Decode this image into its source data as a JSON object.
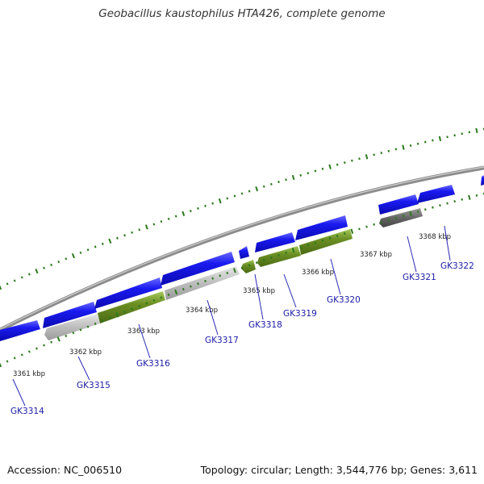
{
  "title": "Geobacillus kaustophilus HTA426, complete genome",
  "footer": {
    "accession": "Accession: NC_006510",
    "summary": "Topology: circular; Length: 3,544,776 bp; Genes: 3,611"
  },
  "colors": {
    "forward_gene": "#1414e6",
    "reverse_gene": "#6b8e23",
    "gray_gene": "#bdbdbd",
    "dark_gray_gene": "#666666",
    "tick": "#2a7a1a",
    "backbone": "#8c8c8c",
    "label": "#1a1aa6"
  },
  "scale_labels": [
    "3361 kbp",
    "3362 kbp",
    "3363 kbp",
    "3364 kbp",
    "3365 kbp",
    "3366 kbp",
    "3367 kbp",
    "3368 kbp"
  ],
  "gene_labels": [
    "GK3314",
    "GK3315",
    "GK3316",
    "GK3317",
    "GK3318",
    "GK3319",
    "GK3320",
    "GK3321",
    "GK3322"
  ]
}
